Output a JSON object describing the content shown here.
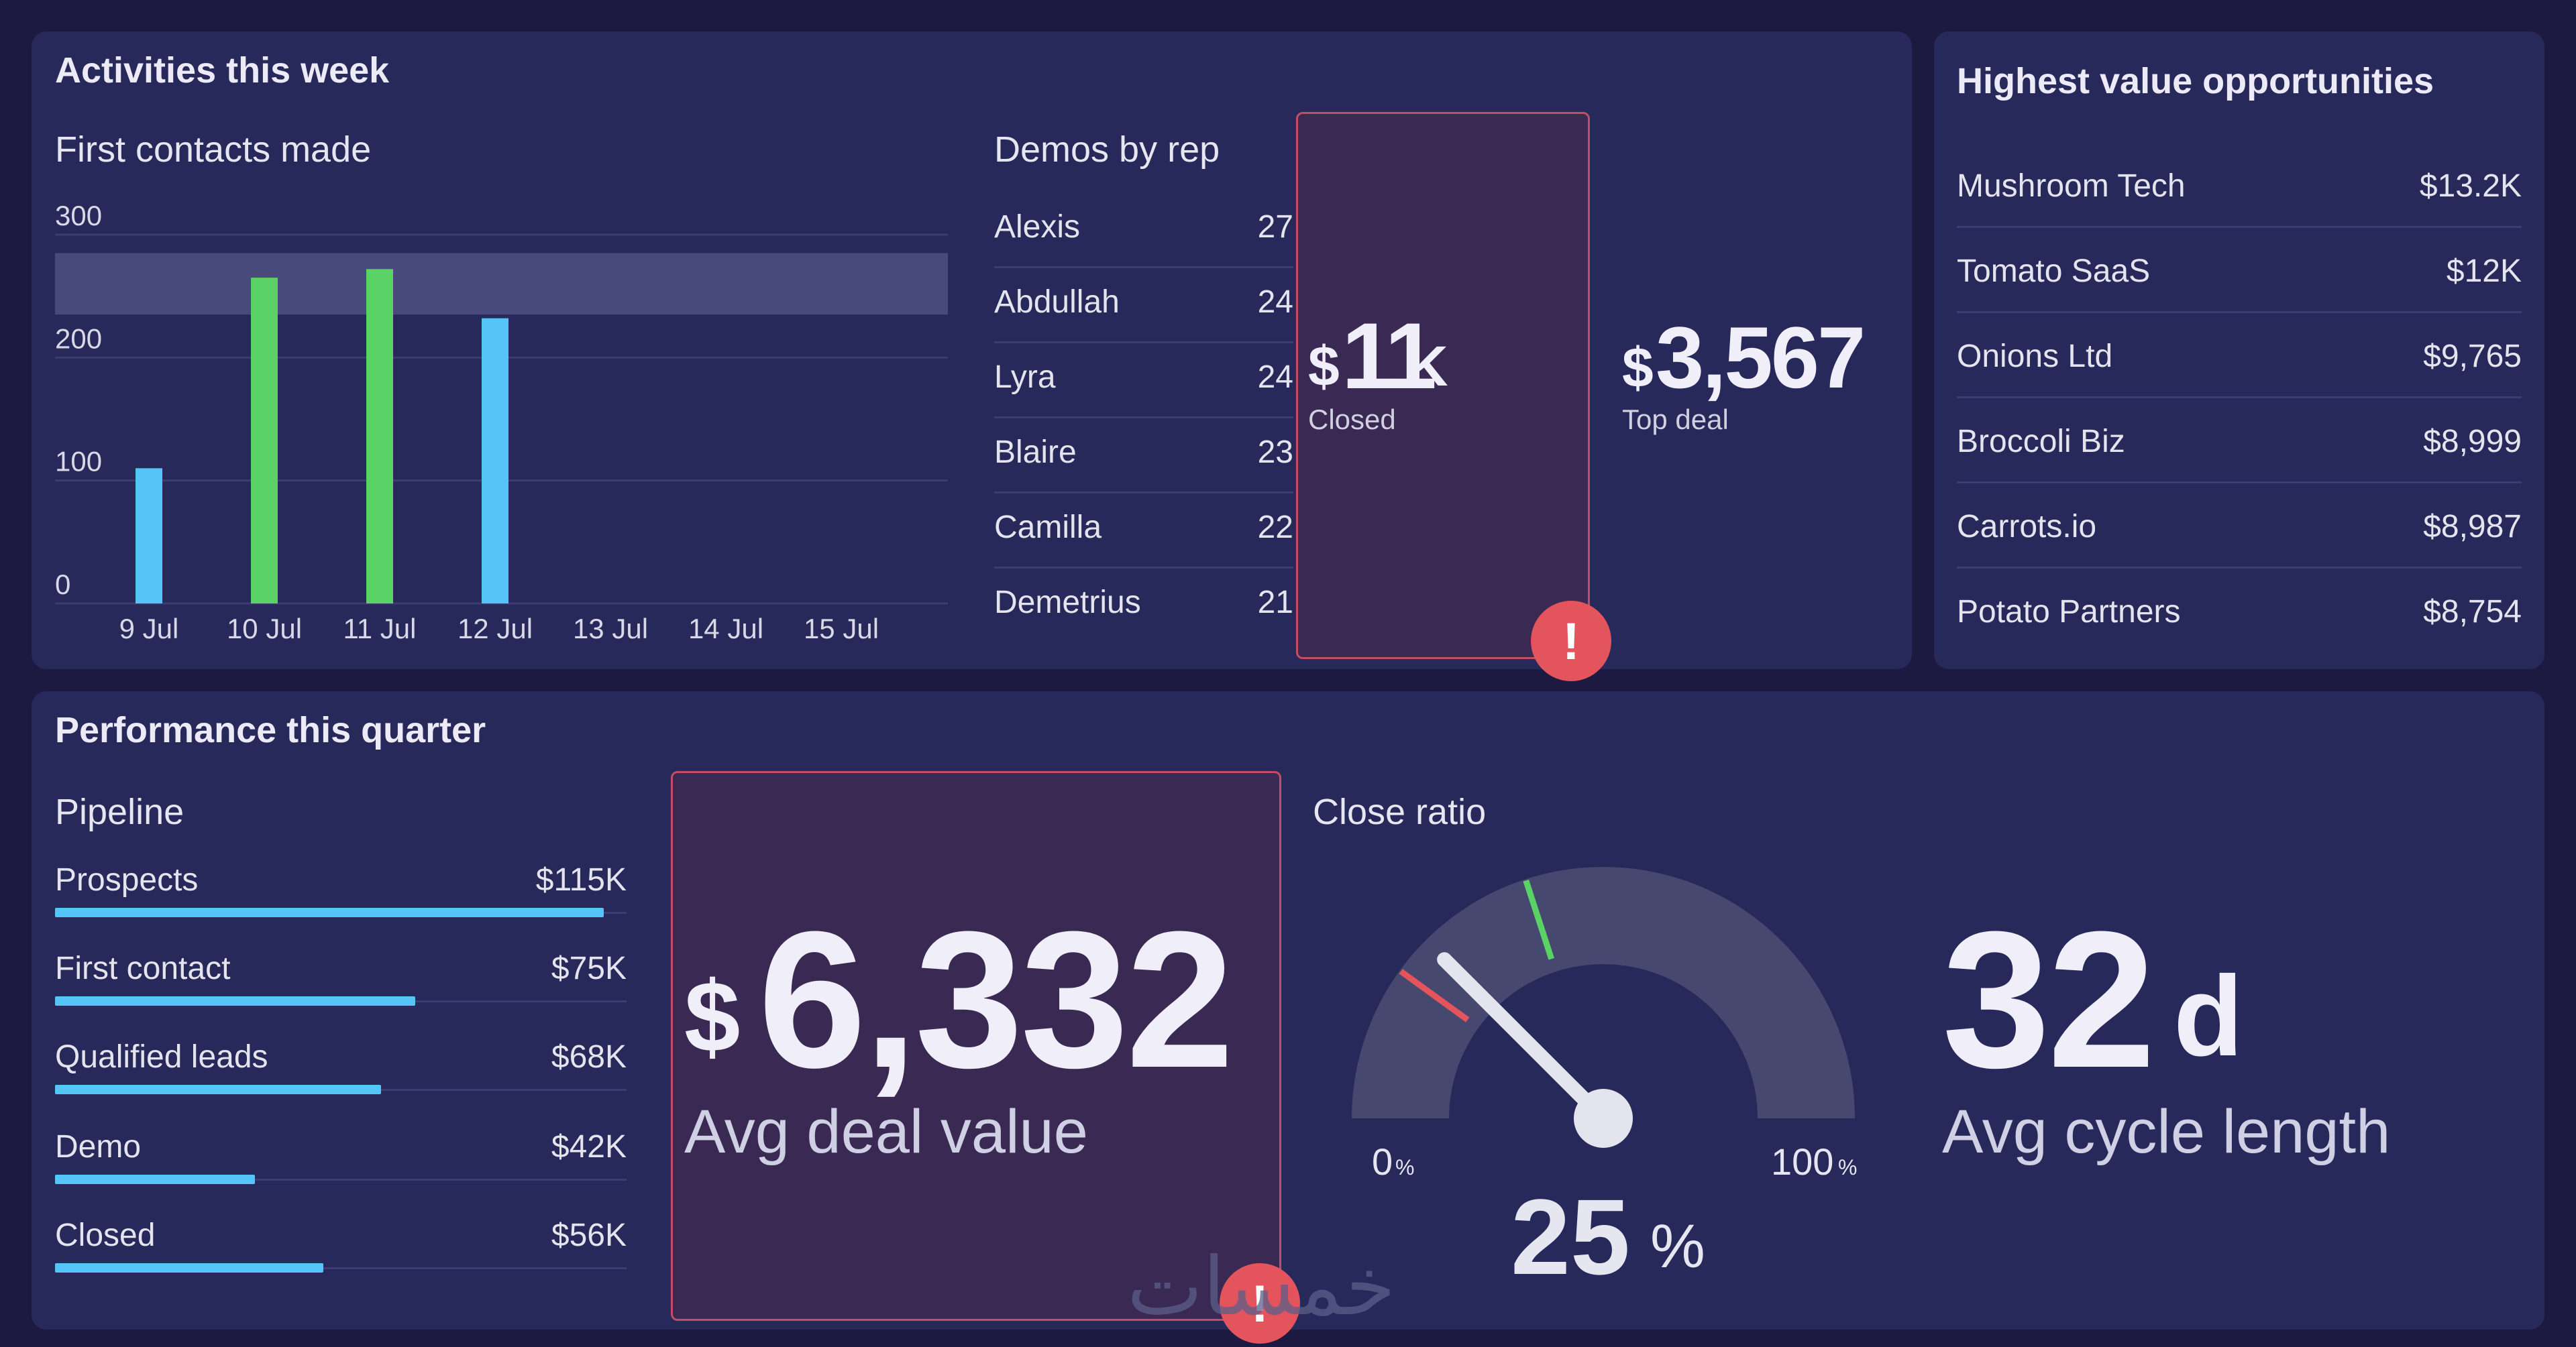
{
  "activities": {
    "title": "Activities this week",
    "contacts": {
      "title": "First contacts made"
    },
    "demos": {
      "title": "Demos by rep",
      "rows": [
        {
          "name": "Alexis",
          "count": "27"
        },
        {
          "name": "Abdullah",
          "count": "24"
        },
        {
          "name": "Lyra",
          "count": "24"
        },
        {
          "name": "Blaire",
          "count": "23"
        },
        {
          "name": "Camilla",
          "count": "22"
        },
        {
          "name": "Demetrius",
          "count": "21"
        }
      ]
    },
    "closed": {
      "currency": "$",
      "value": "11",
      "suffix": "K",
      "label": "Closed",
      "alert_icon": "!"
    },
    "top_deal": {
      "currency": "$",
      "value": "3,567",
      "label": "Top deal"
    }
  },
  "chart_data": {
    "type": "bar",
    "title": "First contacts made",
    "categories": [
      "9 Jul",
      "10 Jul",
      "11 Jul",
      "12 Jul",
      "13 Jul",
      "14 Jul",
      "15 Jul"
    ],
    "values": [
      110,
      265,
      272,
      232,
      null,
      null,
      null
    ],
    "bar_colors": [
      "#55c4f7",
      "#5bd266",
      "#5bd266",
      "#55c4f7",
      null,
      null,
      null
    ],
    "y_ticks": [
      0,
      100,
      200,
      300
    ],
    "ylim": [
      0,
      300
    ],
    "target_band": [
      235,
      285
    ],
    "grid": true
  },
  "opportunities": {
    "title": "Highest value opportunities",
    "rows": [
      {
        "name": "Mushroom Tech",
        "value": "$13.2K"
      },
      {
        "name": "Tomato SaaS",
        "value": "$12K"
      },
      {
        "name": "Onions Ltd",
        "value": "$9,765"
      },
      {
        "name": "Broccoli Biz",
        "value": "$8,999"
      },
      {
        "name": "Carrots.io",
        "value": "$8,987"
      },
      {
        "name": "Potato Partners",
        "value": "$8,754"
      }
    ]
  },
  "performance": {
    "title": "Performance this quarter",
    "pipeline": {
      "title": "Pipeline",
      "rows": [
        {
          "label": "Prospects",
          "value": "$115K",
          "fill_fraction": 0.96
        },
        {
          "label": "First contact",
          "value": "$75K",
          "fill_fraction": 0.63
        },
        {
          "label": "Qualified leads",
          "value": "$68K",
          "fill_fraction": 0.57
        },
        {
          "label": "Demo",
          "value": "$42K",
          "fill_fraction": 0.35
        },
        {
          "label": "Closed",
          "value": "$56K",
          "fill_fraction": 0.47
        }
      ]
    },
    "avg_deal": {
      "currency": "$",
      "value": "6,332",
      "label": "Avg deal value",
      "alert_icon": "!"
    },
    "close_ratio": {
      "title": "Close ratio",
      "value": "25",
      "unit": "%",
      "value_fraction": 0.25,
      "red_marker_fraction": 0.2,
      "green_marker_fraction": 0.4,
      "min_label": "0",
      "max_label": "100",
      "tick_unit": "%"
    },
    "cycle": {
      "value": "32",
      "unit": "d",
      "label": "Avg cycle length"
    }
  },
  "colors": {
    "background": "#1c1a40",
    "panel": "#27295a",
    "bar_blue": "#55c4f7",
    "bar_green": "#5bd266",
    "alert": "#e3545d",
    "gauge_track": "#46486f"
  },
  "watermark": {
    "text": "خمسات"
  }
}
